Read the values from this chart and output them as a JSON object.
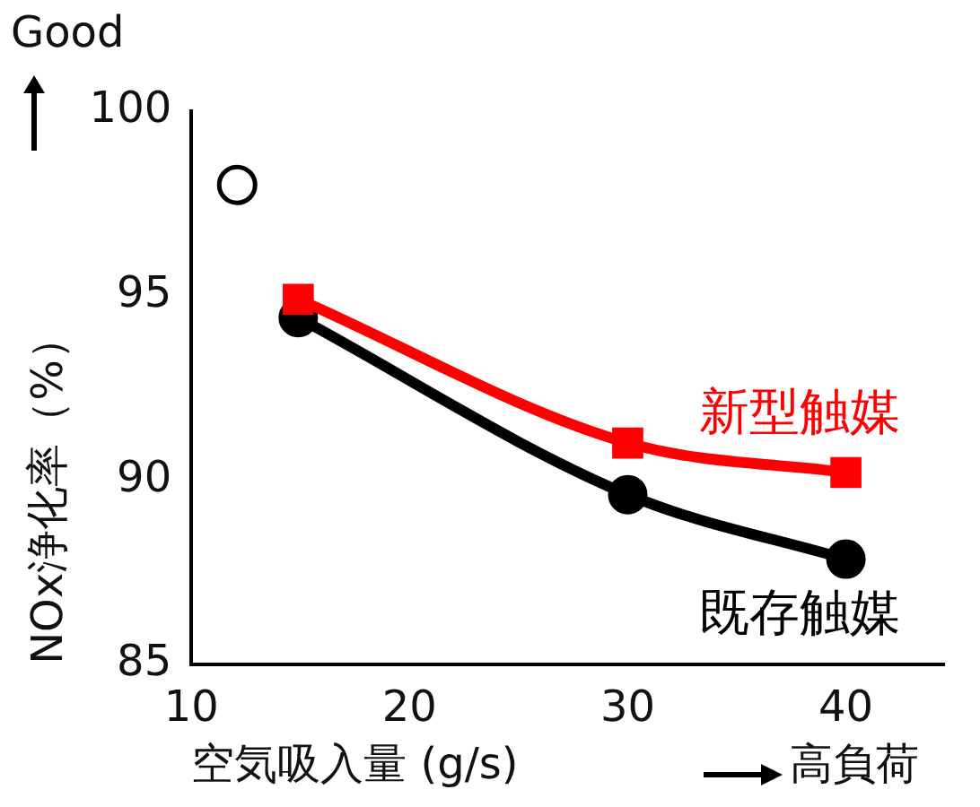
{
  "chart_data": {
    "type": "line",
    "ylabel": "NOx浄化率（%）",
    "xlabel": "空気吸入量 (g/s)",
    "annotations": [
      "Good",
      "高負荷"
    ],
    "xlim": [
      10,
      44.5
    ],
    "xticks": [
      10,
      20,
      30,
      40
    ],
    "ylim": [
      85,
      100
    ],
    "yticks": [
      85,
      90,
      95,
      100
    ],
    "grid": false,
    "legend": false,
    "line_style": "solid",
    "series": [
      {
        "name": "新型触媒",
        "color": "#ff0000",
        "marker": "square",
        "x": [
          14.9,
          30,
          40
        ],
        "values": [
          94.9,
          91.0,
          90.2
        ]
      },
      {
        "name": "既存触媒",
        "color": "#000000",
        "marker": "circle",
        "x": [
          14.9,
          30,
          40
        ],
        "values": [
          94.4,
          89.6,
          87.85
        ]
      },
      {
        "type": "scatter",
        "color": "#000000",
        "marker": "circle",
        "x": [
          12.1
        ],
        "values": [
          98.0
        ]
      }
    ]
  }
}
